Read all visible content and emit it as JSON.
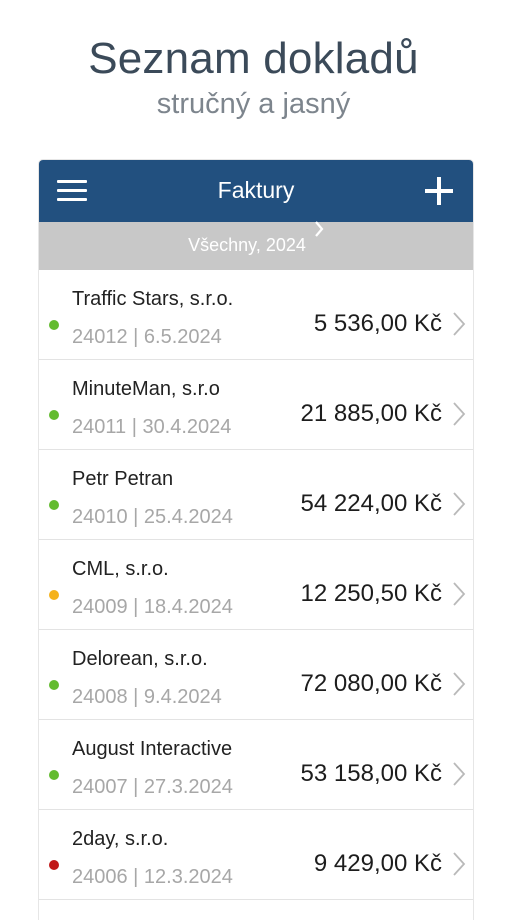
{
  "header": {
    "title": "Seznam dokladů",
    "subtitle": "stručný a jasný"
  },
  "navbar": {
    "title": "Faktury",
    "menu_icon": "hamburger-menu-icon",
    "add_icon": "plus-icon"
  },
  "filter": {
    "label": "Všechny, 2024",
    "icon": "chevron-right-icon"
  },
  "colors": {
    "navbar": "#22507f",
    "filter_bar": "#c8c8c8",
    "status_paid": "#63bb2f",
    "status_pending": "#f5b21b",
    "status_overdue": "#c01818"
  },
  "invoices": [
    {
      "company": "Traffic Stars, s.r.o.",
      "number": "24012",
      "date": "6.5.2024",
      "meta": "24012 | 6.5.2024",
      "amount": "5 536,00 Kč",
      "status_color": "#63bb2f"
    },
    {
      "company": "MinuteMan, s.r.o",
      "number": "24011",
      "date": "30.4.2024",
      "meta": "24011 | 30.4.2024",
      "amount": "21 885,00 Kč",
      "status_color": "#63bb2f"
    },
    {
      "company": "Petr Petran",
      "number": "24010",
      "date": "25.4.2024",
      "meta": "24010 | 25.4.2024",
      "amount": "54 224,00 Kč",
      "status_color": "#63bb2f"
    },
    {
      "company": "CML, s.r.o.",
      "number": "24009",
      "date": "18.4.2024",
      "meta": "24009 | 18.4.2024",
      "amount": "12 250,50 Kč",
      "status_color": "#f5b21b"
    },
    {
      "company": "Delorean, s.r.o.",
      "number": "24008",
      "date": "9.4.2024",
      "meta": "24008 | 9.4.2024",
      "amount": "72 080,00 Kč",
      "status_color": "#63bb2f"
    },
    {
      "company": "August Interactive",
      "number": "24007",
      "date": "27.3.2024",
      "meta": "24007 | 27.3.2024",
      "amount": "53 158,00 Kč",
      "status_color": "#63bb2f"
    },
    {
      "company": "2day, s.r.o.",
      "number": "24006",
      "date": "12.3.2024",
      "meta": "24006 | 12.3.2024",
      "amount": "9 429,00 Kč",
      "status_color": "#c01818"
    }
  ]
}
